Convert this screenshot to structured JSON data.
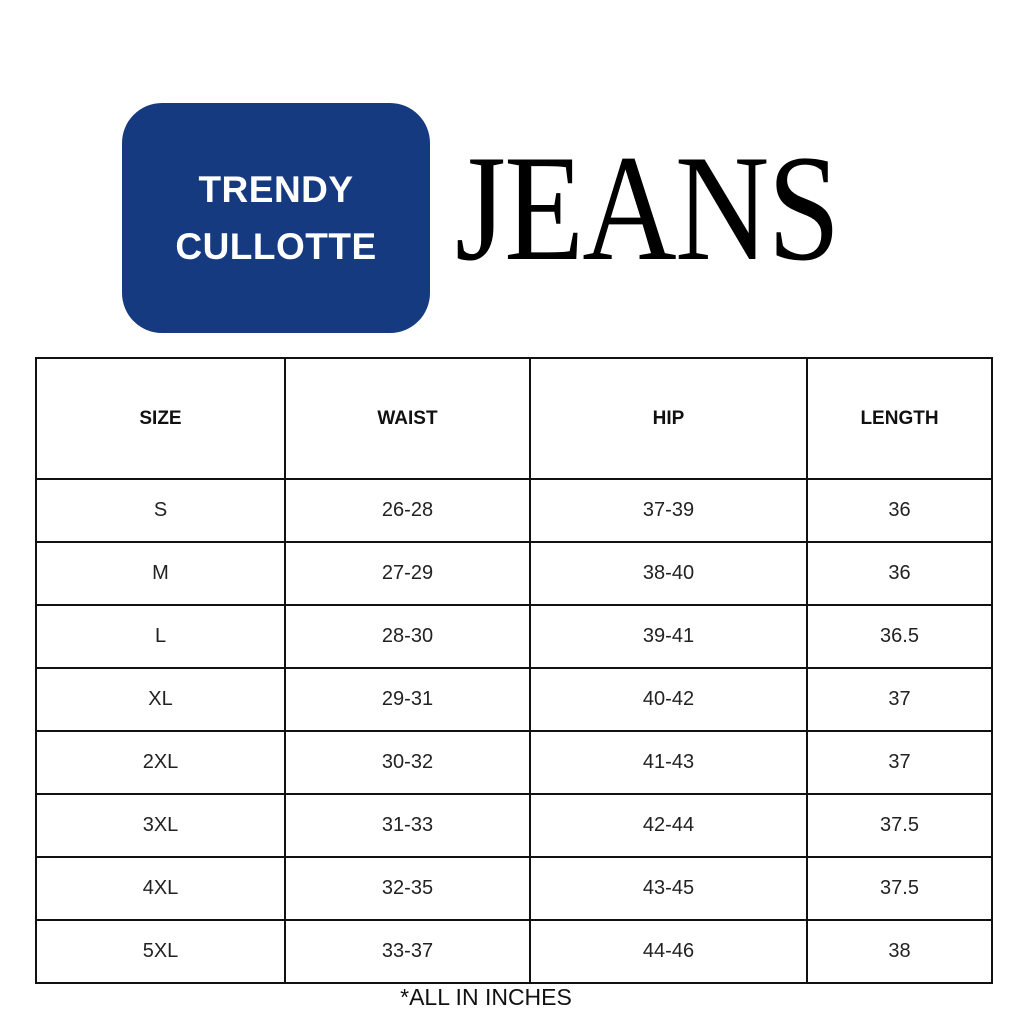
{
  "badge": {
    "line1": "TRENDY",
    "line2": "CULLOTTE",
    "color": "#163a7f"
  },
  "title": "JEANS",
  "table": {
    "headers": [
      "SIZE",
      "WAIST",
      "HIP",
      "LENGTH"
    ],
    "rows": [
      [
        "S",
        "26-28",
        "37-39",
        "36"
      ],
      [
        "M",
        "27-29",
        "38-40",
        "36"
      ],
      [
        "L",
        "28-30",
        "39-41",
        "36.5"
      ],
      [
        "XL",
        "29-31",
        "40-42",
        "37"
      ],
      [
        "2XL",
        "30-32",
        "41-43",
        "37"
      ],
      [
        "3XL",
        "31-33",
        "42-44",
        "37.5"
      ],
      [
        "4XL",
        "32-35",
        "43-45",
        "37.5"
      ],
      [
        "5XL",
        "33-37",
        "44-46",
        "38"
      ]
    ]
  },
  "note": "*ALL IN INCHES"
}
